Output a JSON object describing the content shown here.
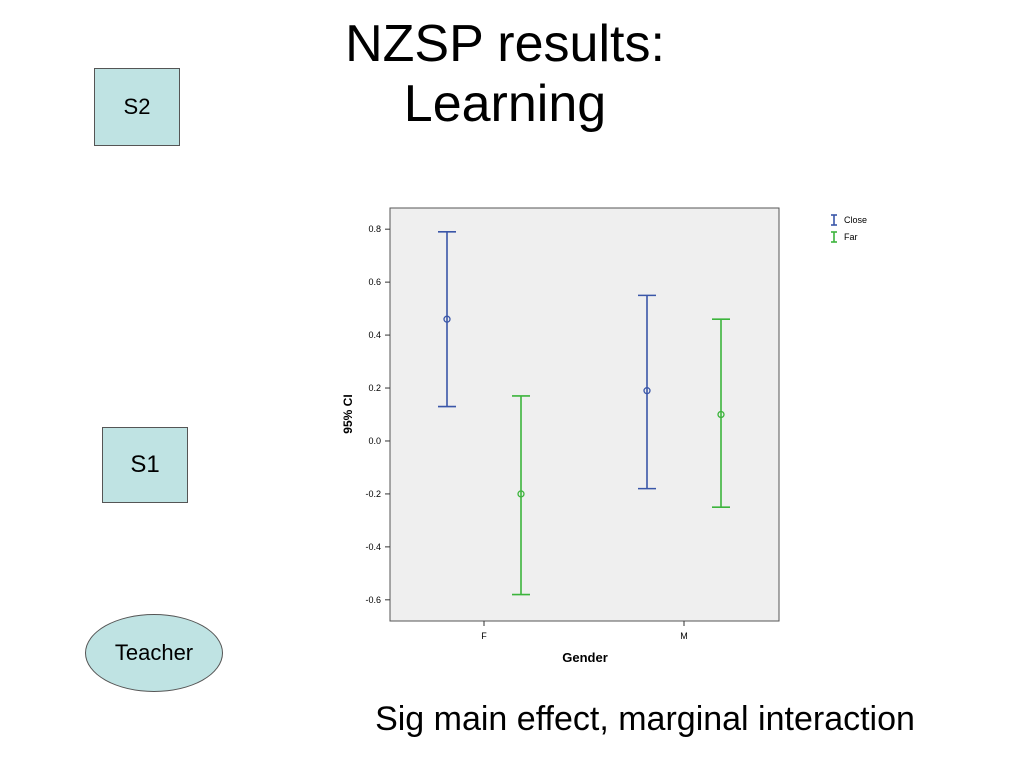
{
  "slide": {
    "title_line1": "NZSP results:",
    "title_line2": "Learning",
    "caption": "Sig main effect, marginal interaction"
  },
  "diagram": {
    "s2_label": "S2",
    "s1_label": "S1",
    "teacher_label": "Teacher",
    "fill_color": "#bfe3e3"
  },
  "chart_data": {
    "type": "errorbar",
    "title": "",
    "xlabel": "Gender",
    "ylabel": "95% CI",
    "categories": [
      "F",
      "M"
    ],
    "ylim": [
      -0.68,
      0.88
    ],
    "yticks": [
      0.8,
      0.6,
      0.4,
      0.2,
      0.0,
      -0.2,
      -0.4,
      -0.6
    ],
    "ytick_labels": [
      "0.8",
      "0.6",
      "0.4",
      "0.2",
      "0.0",
      "-0.2",
      "-0.4",
      "-0.6"
    ],
    "grid": false,
    "legend_position": "top-right (outside plot)",
    "plot_background": "#efefef",
    "series": [
      {
        "name": "Close",
        "color": "#3a56a8",
        "means": [
          0.46,
          0.19
        ],
        "lower": [
          0.13,
          -0.18
        ],
        "upper": [
          0.79,
          0.55
        ]
      },
      {
        "name": "Far",
        "color": "#3cb43c",
        "means": [
          -0.2,
          0.1
        ],
        "lower": [
          -0.58,
          -0.25
        ],
        "upper": [
          0.17,
          0.46
        ]
      }
    ]
  }
}
